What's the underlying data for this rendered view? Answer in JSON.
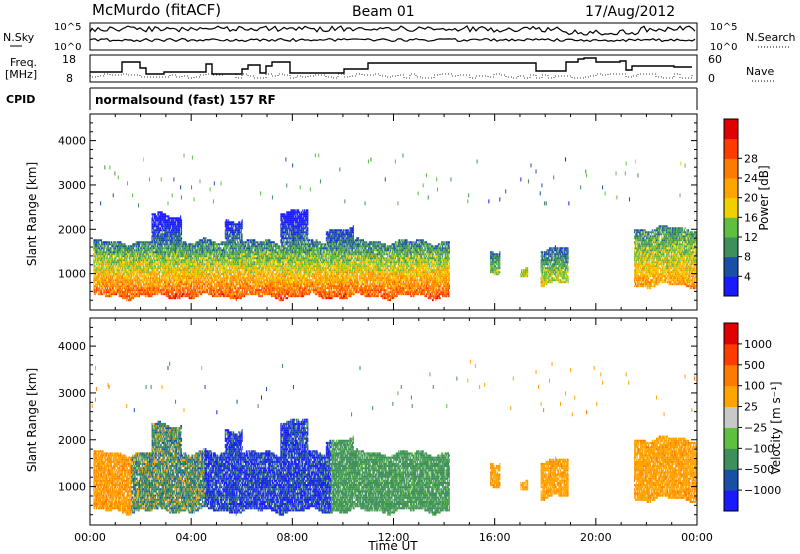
{
  "header": {
    "station": "McMurdo (fitACF)",
    "beam": "Beam 01",
    "date": "17/Aug/2012"
  },
  "noise_panel": {
    "left_label": "N.Sky",
    "right_label": "N.Search",
    "left_ticks": [
      "10^5",
      "10^0"
    ],
    "right_ticks": [
      "10^5",
      "10^0"
    ]
  },
  "freq_panel": {
    "left_label_1": "Freq.",
    "left_label_2": "[MHz]",
    "right_label": "Nave",
    "left_ticks": [
      "18",
      "8"
    ],
    "right_ticks": [
      "60",
      "0"
    ]
  },
  "cpid_panel": {
    "label": "CPID",
    "value": "normalsound (fast) 157 RF"
  },
  "chart_data": [
    {
      "type": "heatmap",
      "title": "",
      "ylabel": "Slant Range [km]",
      "xlabel": "",
      "xlim": [
        0,
        24
      ],
      "ylim": [
        180,
        4600
      ],
      "yticks": [
        "1000",
        "2000",
        "3000",
        "4000"
      ],
      "colorbar": {
        "label": "Power [dB]",
        "ticks": [
          "4",
          "8",
          "12",
          "16",
          "20",
          "24",
          "28"
        ],
        "colors": [
          "#1a1aff",
          "#1a4fa8",
          "#3f8f5c",
          "#5fbf3f",
          "#f0d000",
          "#ffa500",
          "#ff7a00",
          "#ff3c00",
          "#e00000"
        ]
      }
    },
    {
      "type": "heatmap",
      "title": "",
      "ylabel": "Slant Range [km]",
      "xlabel": "Time UT",
      "xlim": [
        0,
        24
      ],
      "ylim": [
        180,
        4600
      ],
      "yticks": [
        "1000",
        "2000",
        "3000",
        "4000"
      ],
      "xticks": [
        "00:00",
        "04:00",
        "08:00",
        "12:00",
        "16:00",
        "20:00",
        "00:00"
      ],
      "colorbar": {
        "label": "Velocity [m s⁻¹]",
        "ticks": [
          "1000",
          "500",
          "100",
          "25",
          "−25",
          "−100",
          "−500",
          "−1000"
        ],
        "colors": [
          "#1a1aff",
          "#1a4fa8",
          "#3f8f5c",
          "#5fbf3f",
          "#c8c8c8",
          "#ffa500",
          "#ff7a00",
          "#ff3c00",
          "#e00000"
        ]
      }
    }
  ]
}
